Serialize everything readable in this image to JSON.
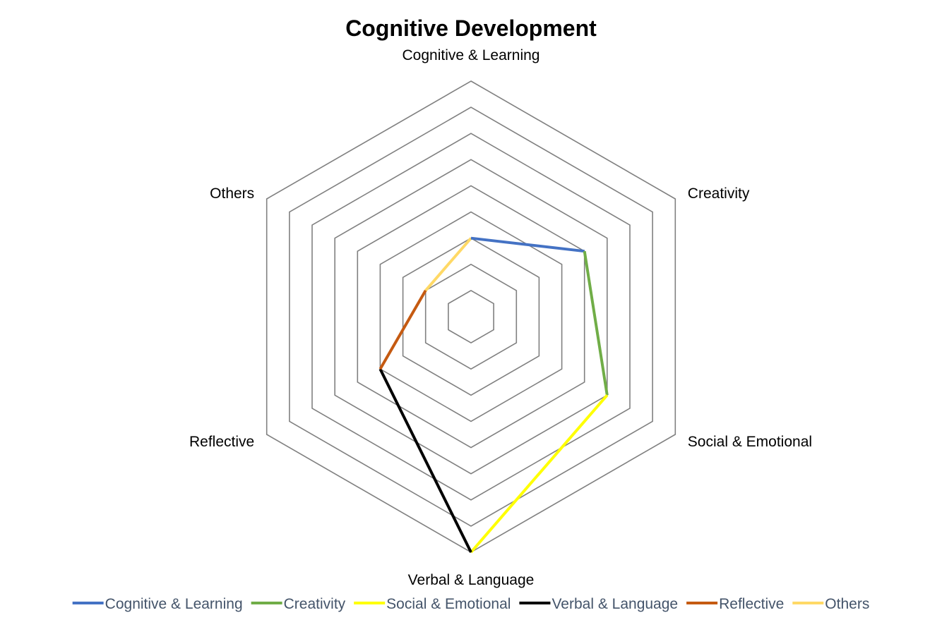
{
  "chart_data": {
    "type": "radar",
    "title": "Cognitive Development",
    "categories": [
      "Cognitive & Learning",
      "Creativity",
      "Social & Emotional",
      "Verbal & Language",
      "Reflective",
      "Others"
    ],
    "values": [
      3,
      5,
      6,
      9,
      4,
      2
    ],
    "rlim": [
      0,
      9
    ],
    "grid": true,
    "gridlines": 9,
    "segment_colors": [
      "#4472c4",
      "#70ad47",
      "#ffff00",
      "#000000",
      "#c55a11",
      "#ffd966"
    ],
    "legend": {
      "placement": "bottom",
      "entries": [
        "Cognitive & Learning",
        "Creativity",
        "Social & Emotional",
        "Verbal & Language",
        "Reflective",
        "Others"
      ]
    }
  }
}
